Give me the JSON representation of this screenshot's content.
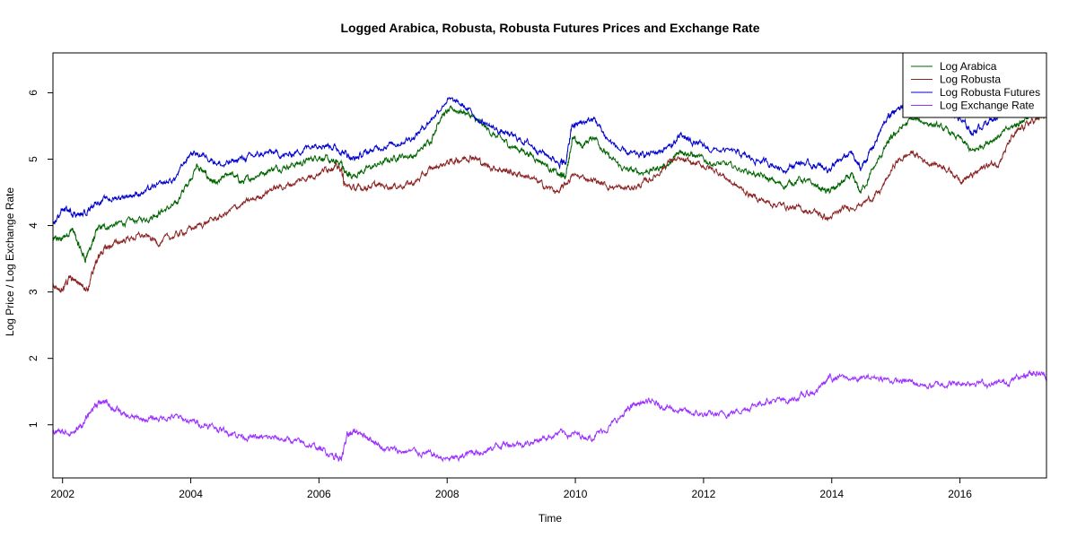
{
  "chart_data": {
    "type": "line",
    "title": "Logged Arabica, Robusta, Robusta Futures Prices and Exchange Rate",
    "xlabel": "Time",
    "ylabel": "Log Price / Log Exchange Rate",
    "xlim": [
      2001.85,
      2017.35
    ],
    "ylim": [
      0.2,
      6.6
    ],
    "x_ticks": [
      2002,
      2004,
      2006,
      2008,
      2010,
      2012,
      2014,
      2016
    ],
    "x_tick_labels": [
      "2002",
      "2004",
      "2006",
      "2008",
      "2010",
      "2012",
      "2014",
      "2016"
    ],
    "y_ticks": [
      1,
      2,
      3,
      4,
      5,
      6
    ],
    "y_tick_labels": [
      "1",
      "2",
      "3",
      "4",
      "5",
      "6"
    ],
    "grid": false,
    "legend": "top-right",
    "series": [
      {
        "name": "Log Arabica",
        "color": "#006400",
        "points": [
          [
            2001.85,
            3.78
          ],
          [
            2002.0,
            3.8
          ],
          [
            2002.15,
            3.95
          ],
          [
            2002.25,
            3.7
          ],
          [
            2002.35,
            3.5
          ],
          [
            2002.45,
            3.7
          ],
          [
            2002.55,
            3.95
          ],
          [
            2002.75,
            4.0
          ],
          [
            2003.0,
            4.05
          ],
          [
            2003.3,
            4.1
          ],
          [
            2003.5,
            4.2
          ],
          [
            2003.75,
            4.3
          ],
          [
            2003.9,
            4.55
          ],
          [
            2004.1,
            4.9
          ],
          [
            2004.25,
            4.75
          ],
          [
            2004.4,
            4.6
          ],
          [
            2004.6,
            4.8
          ],
          [
            2004.8,
            4.65
          ],
          [
            2005.0,
            4.75
          ],
          [
            2005.25,
            4.85
          ],
          [
            2005.5,
            4.9
          ],
          [
            2005.75,
            4.95
          ],
          [
            2006.0,
            5.05
          ],
          [
            2006.2,
            4.95
          ],
          [
            2006.35,
            4.95
          ],
          [
            2006.4,
            4.8
          ],
          [
            2006.5,
            4.75
          ],
          [
            2006.75,
            4.85
          ],
          [
            2007.0,
            4.95
          ],
          [
            2007.25,
            5.05
          ],
          [
            2007.5,
            5.05
          ],
          [
            2007.75,
            5.3
          ],
          [
            2007.9,
            5.65
          ],
          [
            2008.1,
            5.75
          ],
          [
            2008.3,
            5.7
          ],
          [
            2008.5,
            5.55
          ],
          [
            2008.75,
            5.35
          ],
          [
            2009.0,
            5.2
          ],
          [
            2009.25,
            5.1
          ],
          [
            2009.5,
            4.95
          ],
          [
            2009.75,
            4.75
          ],
          [
            2009.85,
            4.75
          ],
          [
            2009.95,
            5.3
          ],
          [
            2010.1,
            5.2
          ],
          [
            2010.3,
            5.35
          ],
          [
            2010.5,
            5.05
          ],
          [
            2010.75,
            4.85
          ],
          [
            2011.0,
            4.8
          ],
          [
            2011.25,
            4.85
          ],
          [
            2011.5,
            4.95
          ],
          [
            2011.65,
            5.15
          ],
          [
            2011.85,
            5.05
          ],
          [
            2012.1,
            4.95
          ],
          [
            2012.4,
            4.9
          ],
          [
            2012.75,
            4.8
          ],
          [
            2013.0,
            4.7
          ],
          [
            2013.25,
            4.6
          ],
          [
            2013.5,
            4.7
          ],
          [
            2013.75,
            4.6
          ],
          [
            2013.95,
            4.5
          ],
          [
            2014.1,
            4.6
          ],
          [
            2014.3,
            4.75
          ],
          [
            2014.45,
            4.5
          ],
          [
            2014.65,
            4.85
          ],
          [
            2014.85,
            5.2
          ],
          [
            2015.0,
            5.4
          ],
          [
            2015.25,
            5.6
          ],
          [
            2015.5,
            5.55
          ],
          [
            2015.75,
            5.45
          ],
          [
            2016.0,
            5.3
          ],
          [
            2016.2,
            5.1
          ],
          [
            2016.4,
            5.25
          ],
          [
            2016.6,
            5.35
          ],
          [
            2016.85,
            5.5
          ],
          [
            2017.0,
            5.6
          ],
          [
            2017.2,
            5.65
          ],
          [
            2017.35,
            5.7
          ]
        ]
      },
      {
        "name": "Log Robusta",
        "color": "#8B2323",
        "points": [
          [
            2001.85,
            3.1
          ],
          [
            2002.0,
            3.05
          ],
          [
            2002.1,
            3.2
          ],
          [
            2002.25,
            3.15
          ],
          [
            2002.4,
            3.05
          ],
          [
            2002.5,
            3.4
          ],
          [
            2002.6,
            3.6
          ],
          [
            2002.75,
            3.7
          ],
          [
            2003.0,
            3.8
          ],
          [
            2003.25,
            3.85
          ],
          [
            2003.5,
            3.75
          ],
          [
            2003.75,
            3.85
          ],
          [
            2004.0,
            3.95
          ],
          [
            2004.25,
            4.05
          ],
          [
            2004.5,
            4.15
          ],
          [
            2004.75,
            4.3
          ],
          [
            2005.0,
            4.4
          ],
          [
            2005.25,
            4.55
          ],
          [
            2005.5,
            4.6
          ],
          [
            2005.75,
            4.7
          ],
          [
            2006.0,
            4.8
          ],
          [
            2006.2,
            4.9
          ],
          [
            2006.35,
            4.85
          ],
          [
            2006.4,
            4.6
          ],
          [
            2006.6,
            4.55
          ],
          [
            2006.8,
            4.6
          ],
          [
            2007.0,
            4.6
          ],
          [
            2007.25,
            4.6
          ],
          [
            2007.5,
            4.65
          ],
          [
            2007.75,
            4.85
          ],
          [
            2008.0,
            4.95
          ],
          [
            2008.2,
            5.0
          ],
          [
            2008.4,
            5.05
          ],
          [
            2008.6,
            4.9
          ],
          [
            2008.85,
            4.85
          ],
          [
            2009.0,
            4.8
          ],
          [
            2009.25,
            4.75
          ],
          [
            2009.5,
            4.6
          ],
          [
            2009.75,
            4.5
          ],
          [
            2009.95,
            4.75
          ],
          [
            2010.25,
            4.7
          ],
          [
            2010.5,
            4.6
          ],
          [
            2010.75,
            4.55
          ],
          [
            2011.0,
            4.6
          ],
          [
            2011.25,
            4.75
          ],
          [
            2011.5,
            5.0
          ],
          [
            2011.75,
            4.95
          ],
          [
            2012.0,
            4.9
          ],
          [
            2012.25,
            4.8
          ],
          [
            2012.5,
            4.6
          ],
          [
            2012.75,
            4.45
          ],
          [
            2013.0,
            4.35
          ],
          [
            2013.25,
            4.3
          ],
          [
            2013.5,
            4.25
          ],
          [
            2013.75,
            4.2
          ],
          [
            2013.95,
            4.1
          ],
          [
            2014.2,
            4.25
          ],
          [
            2014.5,
            4.35
          ],
          [
            2014.75,
            4.5
          ],
          [
            2015.0,
            4.95
          ],
          [
            2015.25,
            5.1
          ],
          [
            2015.5,
            4.95
          ],
          [
            2015.75,
            4.9
          ],
          [
            2016.0,
            4.7
          ],
          [
            2016.2,
            4.75
          ],
          [
            2016.4,
            4.9
          ],
          [
            2016.6,
            4.95
          ],
          [
            2016.8,
            5.3
          ],
          [
            2017.0,
            5.5
          ],
          [
            2017.2,
            5.6
          ],
          [
            2017.35,
            5.65
          ]
        ]
      },
      {
        "name": "Log Robusta Futures",
        "color": "#0000CD",
        "points": [
          [
            2001.85,
            4.0
          ],
          [
            2002.0,
            4.25
          ],
          [
            2002.15,
            4.2
          ],
          [
            2002.3,
            4.15
          ],
          [
            2002.5,
            4.35
          ],
          [
            2002.75,
            4.4
          ],
          [
            2003.0,
            4.45
          ],
          [
            2003.25,
            4.5
          ],
          [
            2003.5,
            4.6
          ],
          [
            2003.75,
            4.7
          ],
          [
            2004.0,
            5.1
          ],
          [
            2004.25,
            5.05
          ],
          [
            2004.5,
            4.9
          ],
          [
            2004.75,
            5.0
          ],
          [
            2005.0,
            5.05
          ],
          [
            2005.25,
            5.1
          ],
          [
            2005.5,
            5.05
          ],
          [
            2005.75,
            5.15
          ],
          [
            2006.0,
            5.25
          ],
          [
            2006.2,
            5.2
          ],
          [
            2006.4,
            5.1
          ],
          [
            2006.55,
            5.0
          ],
          [
            2006.75,
            5.1
          ],
          [
            2007.0,
            5.2
          ],
          [
            2007.25,
            5.25
          ],
          [
            2007.5,
            5.35
          ],
          [
            2007.75,
            5.6
          ],
          [
            2008.0,
            5.9
          ],
          [
            2008.25,
            5.8
          ],
          [
            2008.5,
            5.6
          ],
          [
            2008.75,
            5.45
          ],
          [
            2009.0,
            5.35
          ],
          [
            2009.25,
            5.25
          ],
          [
            2009.5,
            5.1
          ],
          [
            2009.75,
            4.95
          ],
          [
            2009.85,
            4.95
          ],
          [
            2009.95,
            5.5
          ],
          [
            2010.1,
            5.55
          ],
          [
            2010.3,
            5.6
          ],
          [
            2010.5,
            5.3
          ],
          [
            2010.75,
            5.1
          ],
          [
            2011.0,
            5.05
          ],
          [
            2011.25,
            5.1
          ],
          [
            2011.5,
            5.2
          ],
          [
            2011.65,
            5.35
          ],
          [
            2011.85,
            5.25
          ],
          [
            2012.1,
            5.15
          ],
          [
            2012.5,
            5.1
          ],
          [
            2012.75,
            5.0
          ],
          [
            2013.0,
            4.95
          ],
          [
            2013.25,
            4.85
          ],
          [
            2013.5,
            4.95
          ],
          [
            2013.75,
            4.9
          ],
          [
            2013.95,
            4.85
          ],
          [
            2014.1,
            4.95
          ],
          [
            2014.3,
            5.1
          ],
          [
            2014.45,
            4.85
          ],
          [
            2014.65,
            5.2
          ],
          [
            2014.85,
            5.6
          ],
          [
            2015.0,
            5.75
          ],
          [
            2015.25,
            5.85
          ],
          [
            2015.5,
            5.8
          ],
          [
            2015.75,
            5.75
          ],
          [
            2016.0,
            5.6
          ],
          [
            2016.2,
            5.4
          ],
          [
            2016.4,
            5.55
          ],
          [
            2016.6,
            5.65
          ],
          [
            2016.85,
            5.75
          ],
          [
            2017.0,
            5.9
          ],
          [
            2017.2,
            5.95
          ],
          [
            2017.35,
            6.0
          ]
        ]
      },
      {
        "name": "Log Exchange Rate",
        "color": "#9B30FF",
        "points": [
          [
            2001.85,
            0.92
          ],
          [
            2002.0,
            0.88
          ],
          [
            2002.2,
            0.9
          ],
          [
            2002.35,
            1.05
          ],
          [
            2002.5,
            1.3
          ],
          [
            2002.65,
            1.35
          ],
          [
            2002.8,
            1.25
          ],
          [
            2003.0,
            1.12
          ],
          [
            2003.25,
            1.08
          ],
          [
            2003.5,
            1.1
          ],
          [
            2003.75,
            1.12
          ],
          [
            2004.0,
            1.05
          ],
          [
            2004.25,
            1.0
          ],
          [
            2004.5,
            0.92
          ],
          [
            2004.75,
            0.85
          ],
          [
            2005.0,
            0.8
          ],
          [
            2005.25,
            0.8
          ],
          [
            2005.5,
            0.78
          ],
          [
            2005.75,
            0.72
          ],
          [
            2006.0,
            0.65
          ],
          [
            2006.2,
            0.55
          ],
          [
            2006.35,
            0.5
          ],
          [
            2006.45,
            0.85
          ],
          [
            2006.6,
            0.9
          ],
          [
            2006.8,
            0.8
          ],
          [
            2007.0,
            0.65
          ],
          [
            2007.25,
            0.6
          ],
          [
            2007.5,
            0.6
          ],
          [
            2007.75,
            0.55
          ],
          [
            2008.0,
            0.48
          ],
          [
            2008.2,
            0.5
          ],
          [
            2008.4,
            0.6
          ],
          [
            2008.6,
            0.6
          ],
          [
            2008.8,
            0.7
          ],
          [
            2009.0,
            0.72
          ],
          [
            2009.25,
            0.72
          ],
          [
            2009.5,
            0.8
          ],
          [
            2009.75,
            0.88
          ],
          [
            2010.0,
            0.85
          ],
          [
            2010.25,
            0.82
          ],
          [
            2010.5,
            0.95
          ],
          [
            2010.75,
            1.15
          ],
          [
            2010.9,
            1.3
          ],
          [
            2011.1,
            1.35
          ],
          [
            2011.3,
            1.3
          ],
          [
            2011.5,
            1.25
          ],
          [
            2011.75,
            1.18
          ],
          [
            2012.0,
            1.15
          ],
          [
            2012.25,
            1.15
          ],
          [
            2012.5,
            1.2
          ],
          [
            2012.75,
            1.28
          ],
          [
            2013.0,
            1.38
          ],
          [
            2013.25,
            1.35
          ],
          [
            2013.5,
            1.42
          ],
          [
            2013.75,
            1.5
          ],
          [
            2013.95,
            1.7
          ],
          [
            2014.1,
            1.72
          ],
          [
            2014.4,
            1.68
          ],
          [
            2014.7,
            1.72
          ],
          [
            2015.0,
            1.65
          ],
          [
            2015.25,
            1.65
          ],
          [
            2015.5,
            1.58
          ],
          [
            2015.75,
            1.62
          ],
          [
            2016.0,
            1.62
          ],
          [
            2016.25,
            1.65
          ],
          [
            2016.5,
            1.6
          ],
          [
            2016.75,
            1.65
          ],
          [
            2017.0,
            1.75
          ],
          [
            2017.15,
            1.8
          ],
          [
            2017.35,
            1.74
          ]
        ]
      }
    ]
  }
}
